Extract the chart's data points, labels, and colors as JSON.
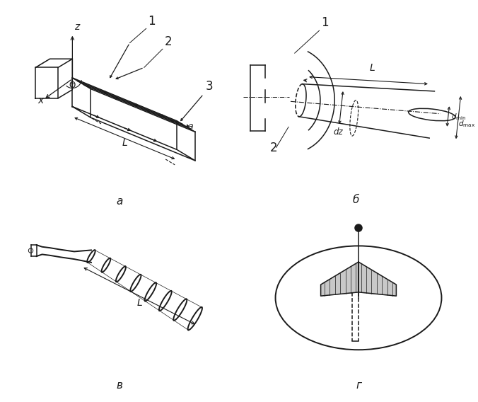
{
  "bg_color": "#ffffff",
  "line_color": "#1a1a1a",
  "label_a": "а",
  "label_b": "б",
  "label_v": "в",
  "label_g": "г",
  "font_size_label": 11,
  "font_size_number": 12
}
